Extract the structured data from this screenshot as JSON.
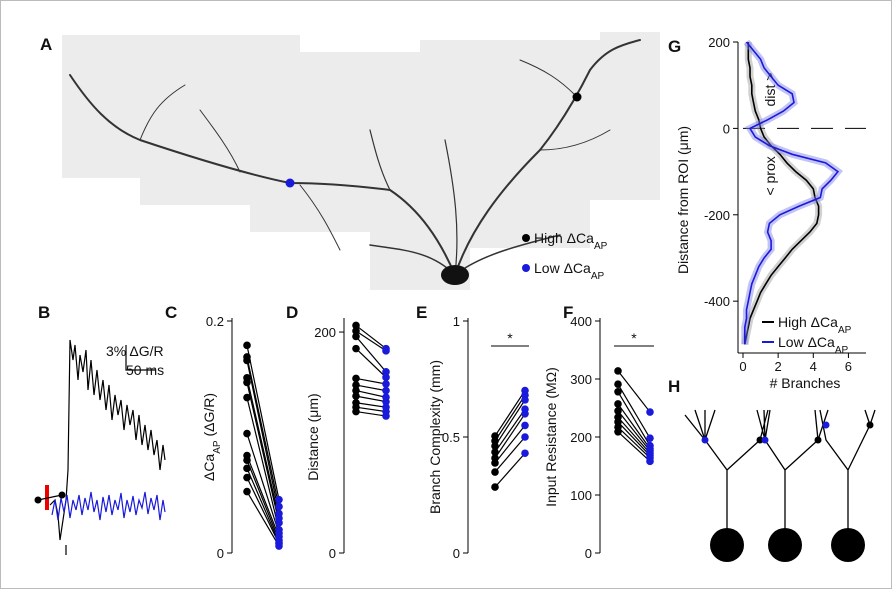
{
  "panel_labels": [
    "A",
    "B",
    "C",
    "D",
    "E",
    "F",
    "G",
    "H"
  ],
  "panel_a": {
    "legend": [
      {
        "text": "High ΔCa",
        "sub": "AP",
        "color": "#000000"
      },
      {
        "text": "Low ΔCa",
        "sub": "AP",
        "color": "#1a1adb"
      }
    ]
  },
  "panel_b": {
    "scale_y": "3% ΔG/R",
    "scale_x": "50 ms"
  },
  "chart_data": [
    {
      "type": "paired",
      "ylabel": "ΔCa",
      "ylabel_sub": "AP",
      "ylabel_unit": "(ΔG/R)",
      "ylim": [
        0,
        0.2
      ],
      "yticks": [
        0,
        0.2
      ],
      "series": [
        {
          "color": "#000000",
          "values": [
            0.179,
            0.169,
            0.166,
            0.151,
            0.147,
            0.134,
            0.103,
            0.084,
            0.08,
            0.073,
            0.065,
            0.053
          ]
        },
        {
          "color": "#1a1adb",
          "values": [
            0.046,
            0.04,
            0.034,
            0.03,
            0.026,
            0.02,
            0.017,
            0.014,
            0.011,
            0.009,
            0.008,
            0.006
          ]
        }
      ]
    },
    {
      "type": "paired",
      "ylabel": "Distance (μm)",
      "ylim": [
        0,
        210
      ],
      "yticks": [
        0,
        200
      ],
      "series": [
        {
          "color": "#000000",
          "values": [
            206,
            201,
            196,
            185,
            158,
            152,
            147,
            142,
            136,
            132,
            128
          ]
        },
        {
          "color": "#1a1adb",
          "values": [
            185,
            183,
            164,
            159,
            153,
            147,
            141,
            137,
            132,
            128,
            124
          ]
        }
      ]
    },
    {
      "type": "paired",
      "ylabel": "Branch Complexity (mm)",
      "ylim": [
        0,
        1
      ],
      "yticks": [
        0,
        0.5,
        1
      ],
      "annotation": "*",
      "series": [
        {
          "color": "#000000",
          "values": [
            0.504,
            0.483,
            0.461,
            0.435,
            0.409,
            0.388,
            0.349,
            0.284
          ]
        },
        {
          "color": "#1a1adb",
          "values": [
            0.7,
            0.68,
            0.66,
            0.62,
            0.6,
            0.55,
            0.5,
            0.43
          ]
        }
      ]
    },
    {
      "type": "paired",
      "ylabel": "Input Resistance (MΩ)",
      "ylim": [
        0,
        400
      ],
      "yticks": [
        0,
        100,
        200,
        300,
        400
      ],
      "annotation": "*",
      "series": [
        {
          "color": "#000000",
          "values": [
            314,
            291,
            278,
            257,
            245,
            234,
            226,
            217,
            209
          ]
        },
        {
          "color": "#1a1adb",
          "values": [
            243,
            198,
            185,
            180,
            176,
            172,
            168,
            164,
            158
          ]
        }
      ]
    },
    {
      "type": "line",
      "xlabel": "# Branches",
      "ylabel": "Distance from ROI (μm)",
      "annotations": [
        "dist >",
        "< prox"
      ],
      "xlim": [
        0,
        7
      ],
      "xticks": [
        0,
        2,
        4,
        6
      ],
      "ylim": [
        -520,
        200
      ],
      "yticks": [
        -400,
        -200,
        0,
        200
      ],
      "y": [
        200,
        180,
        160,
        140,
        120,
        100,
        80,
        60,
        40,
        20,
        0,
        -20,
        -40,
        -60,
        -80,
        -100,
        -120,
        -140,
        -160,
        -180,
        -200,
        -220,
        -240,
        -260,
        -280,
        -300,
        -320,
        -340,
        -360,
        -380,
        -400,
        -420,
        -440,
        -460,
        -480,
        -500
      ],
      "series": [
        {
          "name": "High ΔCa",
          "name_sub": "AP",
          "color": "#000000",
          "values": [
            0.3,
            0.3,
            0.3,
            0.4,
            0.4,
            0.5,
            0.5,
            0.6,
            0.7,
            0.9,
            1.0,
            1.2,
            1.6,
            2.1,
            2.5,
            3.0,
            3.6,
            4.0,
            4.1,
            4.3,
            4.3,
            4.2,
            3.8,
            3.3,
            2.8,
            2.4,
            2.0,
            1.6,
            1.3,
            1.0,
            0.8,
            0.6,
            0.4,
            0.3,
            0.2,
            0.1
          ]
        },
        {
          "name": "Low ΔCa",
          "name_sub": "AP",
          "color": "#1a1adb",
          "values": [
            0.2,
            0.6,
            1.0,
            1.2,
            1.6,
            2.0,
            2.8,
            2.9,
            2.3,
            1.4,
            0.4,
            0.7,
            1.5,
            2.8,
            4.7,
            5.4,
            5.0,
            4.5,
            4.4,
            3.2,
            2.1,
            1.5,
            1.4,
            1.6,
            1.6,
            1.2,
            0.9,
            0.7,
            0.5,
            0.4,
            0.3,
            0.2,
            0.2,
            0.1,
            0.1,
            0.1
          ]
        }
      ]
    }
  ]
}
